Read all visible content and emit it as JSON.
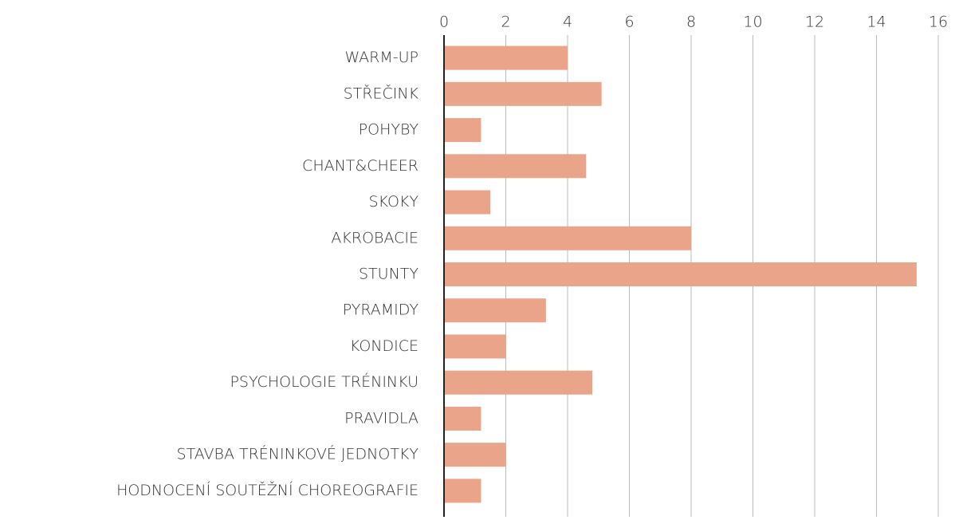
{
  "chart_data": {
    "type": "bar",
    "orientation": "horizontal",
    "categories": [
      "WARM-UP",
      "STŘEČINK",
      "POHYBY",
      "CHANT&CHEER",
      "SKOKY",
      "AKROBACIE",
      "STUNTY",
      "PYRAMIDY",
      "KONDICE",
      "PSYCHOLOGIE TRÉNINKU",
      "PRAVIDLA",
      "STAVBA TRÉNINKOVÉ JEDNOTKY",
      "HODNOCENÍ SOUTĚŽNÍ CHOREOGRAFIE"
    ],
    "values": [
      4,
      5.1,
      1.2,
      4.6,
      1.5,
      8,
      15.3,
      3.3,
      2,
      4.8,
      1.2,
      2,
      1.2
    ],
    "color": "#e9a48a",
    "xlim": [
      0,
      16
    ],
    "xticks": [
      0,
      2,
      4,
      6,
      8,
      10,
      12,
      14,
      16
    ],
    "grid": true
  }
}
